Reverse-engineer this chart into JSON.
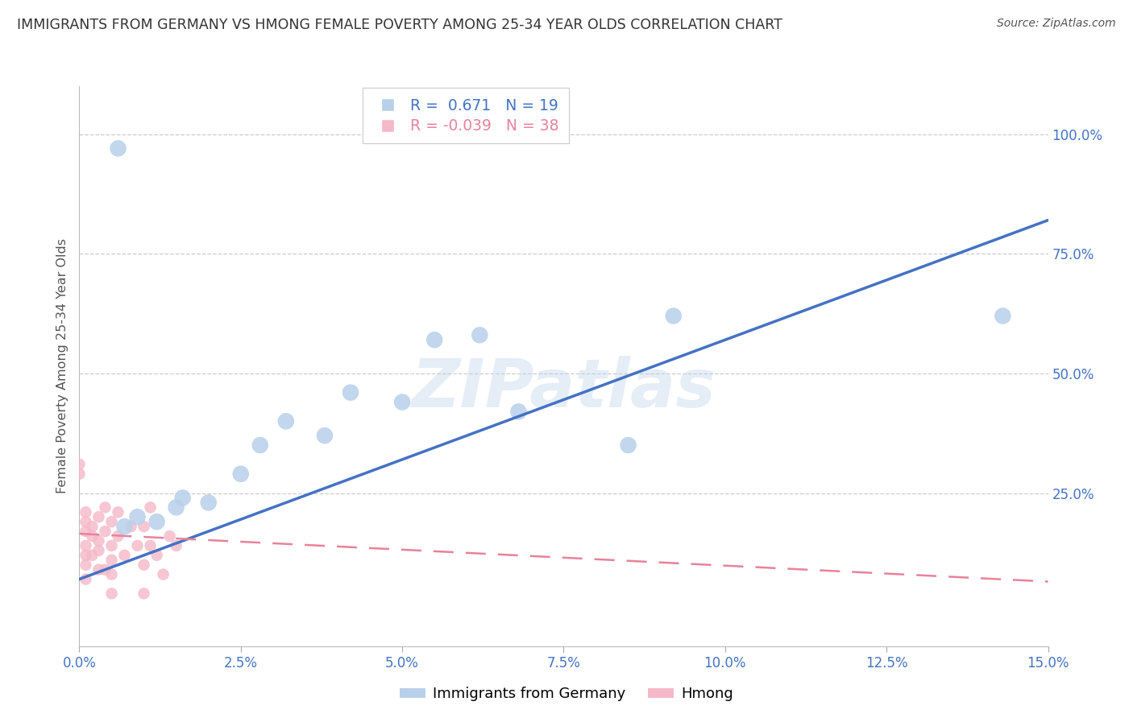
{
  "title": "IMMIGRANTS FROM GERMANY VS HMONG FEMALE POVERTY AMONG 25-34 YEAR OLDS CORRELATION CHART",
  "source": "Source: ZipAtlas.com",
  "ylabel": "Female Poverty Among 25-34 Year Olds",
  "ytick_labels": [
    "100.0%",
    "75.0%",
    "50.0%",
    "25.0%"
  ],
  "ytick_values": [
    1.0,
    0.75,
    0.5,
    0.25
  ],
  "xlim": [
    0.0,
    0.15
  ],
  "ylim": [
    -0.07,
    1.1
  ],
  "blue_r": "0.671",
  "blue_n": "19",
  "pink_r": "-0.039",
  "pink_n": "38",
  "blue_dot_color": "#b8d0ea",
  "pink_dot_color": "#f5b8c8",
  "blue_line_color": "#4472c4",
  "pink_line_color": "#e8829a",
  "grid_color": "#cccccc",
  "title_color": "#333333",
  "axis_color": "#4472c4",
  "watermark": "ZIPatlas",
  "blue_points_x": [
    0.006,
    0.007,
    0.009,
    0.012,
    0.015,
    0.016,
    0.02,
    0.025,
    0.028,
    0.032,
    0.038,
    0.042,
    0.05,
    0.055,
    0.062,
    0.068,
    0.085,
    0.092,
    0.143
  ],
  "blue_points_y": [
    0.97,
    0.18,
    0.2,
    0.19,
    0.22,
    0.24,
    0.23,
    0.29,
    0.35,
    0.4,
    0.37,
    0.46,
    0.44,
    0.57,
    0.58,
    0.42,
    0.35,
    0.62,
    0.62
  ],
  "pink_points_x": [
    0.0,
    0.0,
    0.001,
    0.001,
    0.001,
    0.001,
    0.001,
    0.001,
    0.001,
    0.002,
    0.002,
    0.002,
    0.003,
    0.003,
    0.003,
    0.003,
    0.004,
    0.004,
    0.004,
    0.005,
    0.005,
    0.005,
    0.005,
    0.005,
    0.006,
    0.006,
    0.007,
    0.008,
    0.009,
    0.01,
    0.01,
    0.01,
    0.011,
    0.011,
    0.012,
    0.013,
    0.014,
    0.015
  ],
  "pink_points_y": [
    0.29,
    0.31,
    0.17,
    0.19,
    0.21,
    0.14,
    0.12,
    0.1,
    0.07,
    0.16,
    0.18,
    0.12,
    0.2,
    0.15,
    0.13,
    0.09,
    0.17,
    0.22,
    0.09,
    0.19,
    0.11,
    0.14,
    0.08,
    0.04,
    0.16,
    0.21,
    0.12,
    0.18,
    0.14,
    0.18,
    0.1,
    0.04,
    0.22,
    0.14,
    0.12,
    0.08,
    0.16,
    0.14
  ],
  "blue_trendline_x": [
    0.0,
    0.15
  ],
  "blue_trendline_y": [
    0.07,
    0.82
  ],
  "pink_trendline_x": [
    0.0,
    0.15
  ],
  "pink_trendline_y": [
    0.165,
    0.065
  ]
}
